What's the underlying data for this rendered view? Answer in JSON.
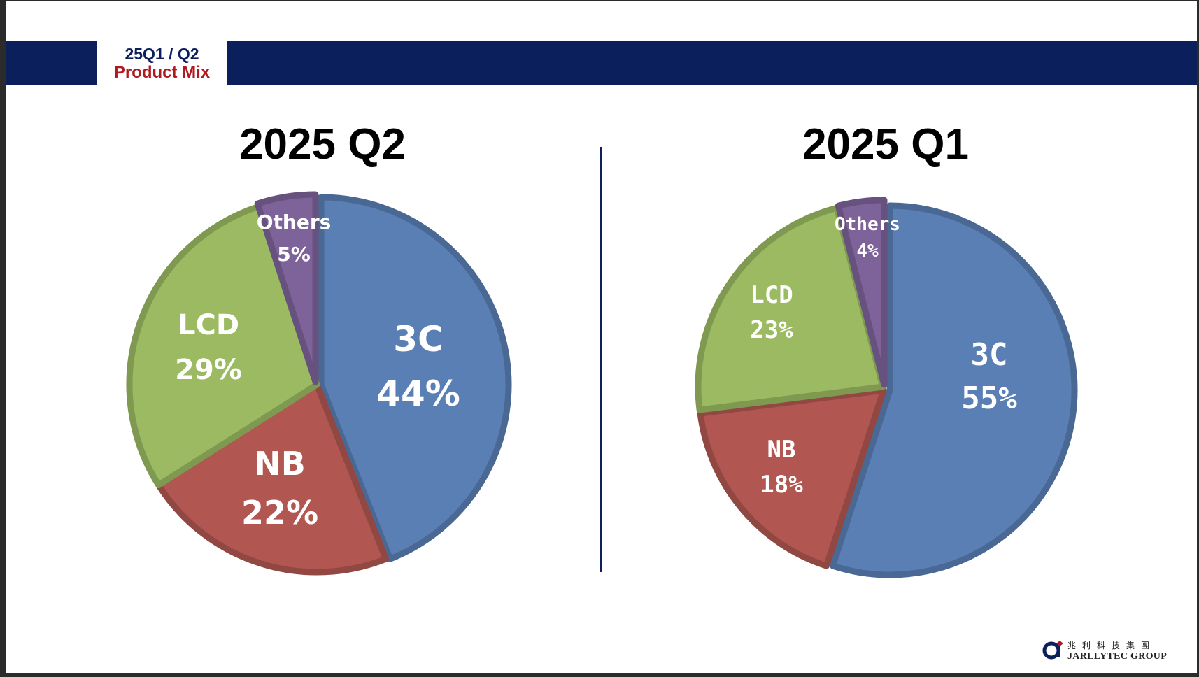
{
  "header": {
    "period_label": "25Q1 / Q2",
    "section_label": "Product Mix"
  },
  "colors": {
    "navy": "#0a1f5c",
    "red_text": "#b0191e",
    "3C": "#5a7fb5",
    "NB": "#b15650",
    "LCD": "#9bba62",
    "Others": "#7e639a"
  },
  "chart_data": [
    {
      "type": "pie",
      "title": "2025 Q2",
      "slices": [
        {
          "label": "3C",
          "value": 44,
          "display": "44%"
        },
        {
          "label": "NB",
          "value": 22,
          "display": "22%"
        },
        {
          "label": "LCD",
          "value": 29,
          "display": "29%"
        },
        {
          "label": "Others",
          "value": 5,
          "display": "5%"
        }
      ]
    },
    {
      "type": "pie",
      "title": "2025 Q1",
      "slices": [
        {
          "label": "3C",
          "value": 55,
          "display": "55%"
        },
        {
          "label": "NB",
          "value": 18,
          "display": "18%"
        },
        {
          "label": "LCD",
          "value": 23,
          "display": "23%"
        },
        {
          "label": "Others",
          "value": 4,
          "display": "4%"
        }
      ]
    }
  ],
  "logo": {
    "name_cn": "兆利科技集團",
    "name_en": "JARLLYTEC GROUP"
  }
}
